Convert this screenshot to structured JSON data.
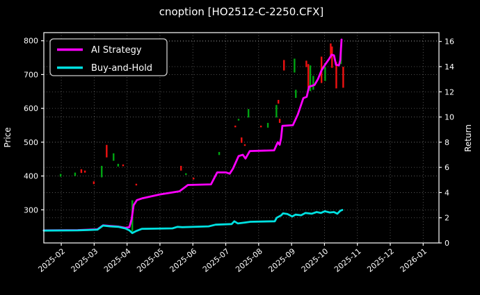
{
  "title": "cnoption [HO2512-C-2250.CFX]",
  "colors": {
    "background": "#000000",
    "foreground": "#ffffff",
    "grid": "#7a7a7a",
    "ai_strategy": "#ff00ff",
    "buy_and_hold": "#00e1e1",
    "candle_up": "#00a412",
    "candle_down": "#ee1111"
  },
  "chart_data": {
    "type": "line",
    "title": "cnoption [HO2512-C-2250.CFX]",
    "ylabel_left": "Price",
    "ylabel_right": "Return",
    "grid": true,
    "grid_style": "dotted",
    "x_axis": {
      "unit": "months since 2025-02 tick",
      "min": -0.53,
      "max": 11.48,
      "tick_positions": [
        0,
        1,
        2,
        3,
        4,
        5,
        6,
        7,
        8,
        9,
        10,
        11
      ],
      "tick_labels": [
        "2025-02",
        "2025-03",
        "2025-04",
        "2025-05",
        "2025-06",
        "2025-07",
        "2025-08",
        "2025-09",
        "2025-10",
        "2025-11",
        "2025-12",
        "2026-01"
      ],
      "tick_label_rotation_deg": -40
    },
    "price_axis": {
      "side": "left",
      "min": 202,
      "max": 824,
      "ticks": [
        300,
        400,
        500,
        600,
        700,
        800
      ]
    },
    "return_axis": {
      "side": "right",
      "min": 0,
      "max": 16.7,
      "ticks": [
        0,
        2,
        4,
        6,
        8,
        10,
        12,
        14,
        16
      ]
    },
    "legend": {
      "position": "upper left",
      "entries": [
        {
          "label": "AI Strategy",
          "color": "#ff00ff"
        },
        {
          "label": "Buy-and-Hold",
          "color": "#00e1e1"
        }
      ]
    },
    "series": [
      {
        "name": "AI Strategy",
        "axis": "return",
        "color": "#ff00ff",
        "points": [
          [
            -0.53,
            1.0
          ],
          [
            0.5,
            1.02
          ],
          [
            1.1,
            1.08
          ],
          [
            1.27,
            1.4
          ],
          [
            1.48,
            1.35
          ],
          [
            1.73,
            1.3
          ],
          [
            1.95,
            1.2
          ],
          [
            2.07,
            1.25
          ],
          [
            2.14,
            1.9
          ],
          [
            2.2,
            3.0
          ],
          [
            2.3,
            3.4
          ],
          [
            2.47,
            3.55
          ],
          [
            3.0,
            3.85
          ],
          [
            3.59,
            4.1
          ],
          [
            3.72,
            4.35
          ],
          [
            3.85,
            4.6
          ],
          [
            4.55,
            4.65
          ],
          [
            4.74,
            5.6
          ],
          [
            5.01,
            5.6
          ],
          [
            5.12,
            5.5
          ],
          [
            5.22,
            5.9
          ],
          [
            5.39,
            6.9
          ],
          [
            5.52,
            7.0
          ],
          [
            5.6,
            6.7
          ],
          [
            5.73,
            7.3
          ],
          [
            6.47,
            7.35
          ],
          [
            6.58,
            8.0
          ],
          [
            6.64,
            7.8
          ],
          [
            6.68,
            8.3
          ],
          [
            6.72,
            9.3
          ],
          [
            7.04,
            9.35
          ],
          [
            7.19,
            10.2
          ],
          [
            7.36,
            11.5
          ],
          [
            7.46,
            11.6
          ],
          [
            7.53,
            12.4
          ],
          [
            7.7,
            12.55
          ],
          [
            7.8,
            13.0
          ],
          [
            7.91,
            13.7
          ],
          [
            8.03,
            14.2
          ],
          [
            8.14,
            14.6
          ],
          [
            8.22,
            14.95
          ],
          [
            8.29,
            14.9
          ],
          [
            8.35,
            14.15
          ],
          [
            8.44,
            14.1
          ],
          [
            8.48,
            14.5
          ],
          [
            8.52,
            16.15
          ]
        ]
      },
      {
        "name": "Buy-and-Hold",
        "axis": "return",
        "color": "#00e1e1",
        "points": [
          [
            -0.53,
            0.98
          ],
          [
            0.5,
            1.0
          ],
          [
            1.1,
            1.05
          ],
          [
            1.27,
            1.38
          ],
          [
            1.48,
            1.32
          ],
          [
            1.73,
            1.28
          ],
          [
            1.95,
            1.15
          ],
          [
            2.07,
            1.0
          ],
          [
            2.16,
            0.78
          ],
          [
            2.28,
            0.95
          ],
          [
            2.45,
            1.12
          ],
          [
            3.38,
            1.16
          ],
          [
            3.53,
            1.28
          ],
          [
            3.68,
            1.25
          ],
          [
            4.48,
            1.32
          ],
          [
            4.69,
            1.45
          ],
          [
            5.18,
            1.5
          ],
          [
            5.26,
            1.72
          ],
          [
            5.37,
            1.55
          ],
          [
            5.58,
            1.62
          ],
          [
            5.75,
            1.68
          ],
          [
            6.49,
            1.72
          ],
          [
            6.55,
            2.0
          ],
          [
            6.68,
            2.18
          ],
          [
            6.74,
            2.35
          ],
          [
            6.87,
            2.3
          ],
          [
            7.02,
            2.1
          ],
          [
            7.12,
            2.25
          ],
          [
            7.29,
            2.2
          ],
          [
            7.42,
            2.38
          ],
          [
            7.61,
            2.32
          ],
          [
            7.76,
            2.45
          ],
          [
            7.89,
            2.38
          ],
          [
            8.01,
            2.52
          ],
          [
            8.16,
            2.42
          ],
          [
            8.29,
            2.45
          ],
          [
            8.39,
            2.32
          ],
          [
            8.48,
            2.55
          ],
          [
            8.54,
            2.62
          ]
        ]
      }
    ],
    "candles": {
      "axis": "price",
      "up_color": "#00a412",
      "down_color": "#ee1111",
      "items": [
        [
          -0.02,
          406,
          398,
          "up"
        ],
        [
          0.42,
          410,
          400,
          "up"
        ],
        [
          0.61,
          420,
          409,
          "down"
        ],
        [
          0.72,
          416,
          410,
          "down"
        ],
        [
          0.99,
          384,
          376,
          "down"
        ],
        [
          1.23,
          430,
          396,
          "up"
        ],
        [
          1.38,
          492,
          455,
          "down"
        ],
        [
          1.59,
          467,
          445,
          "up"
        ],
        [
          1.73,
          436,
          428,
          "up"
        ],
        [
          1.88,
          434,
          429,
          "down"
        ],
        [
          2.16,
          328,
          236,
          "up"
        ],
        [
          2.28,
          377,
          372,
          "down"
        ],
        [
          3.64,
          430,
          416,
          "down"
        ],
        [
          3.79,
          408,
          403,
          "up"
        ],
        [
          4.02,
          395,
          390,
          "down"
        ],
        [
          4.8,
          471,
          462,
          "up"
        ],
        [
          5.29,
          549,
          544,
          "down"
        ],
        [
          5.39,
          569,
          564,
          "up"
        ],
        [
          5.48,
          514,
          498,
          "down"
        ],
        [
          5.58,
          494,
          489,
          "down"
        ],
        [
          5.69,
          598,
          573,
          "up"
        ],
        [
          6.07,
          549,
          544,
          "down"
        ],
        [
          6.28,
          557,
          543,
          "up"
        ],
        [
          6.54,
          610,
          573,
          "up"
        ],
        [
          6.6,
          625,
          614,
          "down"
        ],
        [
          6.64,
          569,
          557,
          "down"
        ],
        [
          6.77,
          743,
          712,
          "down"
        ],
        [
          7.09,
          747,
          706,
          "up"
        ],
        [
          7.13,
          655,
          631,
          "up"
        ],
        [
          7.45,
          741,
          722,
          "down"
        ],
        [
          7.51,
          731,
          661,
          "down"
        ],
        [
          7.57,
          727,
          651,
          "up"
        ],
        [
          7.66,
          696,
          655,
          "up"
        ],
        [
          7.91,
          753,
          675,
          "down"
        ],
        [
          8.02,
          722,
          681,
          "up"
        ],
        [
          8.19,
          792,
          757,
          "down"
        ],
        [
          8.23,
          783,
          720,
          "down"
        ],
        [
          8.36,
          737,
          659,
          "down"
        ],
        [
          8.5,
          782,
          731,
          "up"
        ],
        [
          8.57,
          723,
          661,
          "down"
        ]
      ]
    }
  }
}
